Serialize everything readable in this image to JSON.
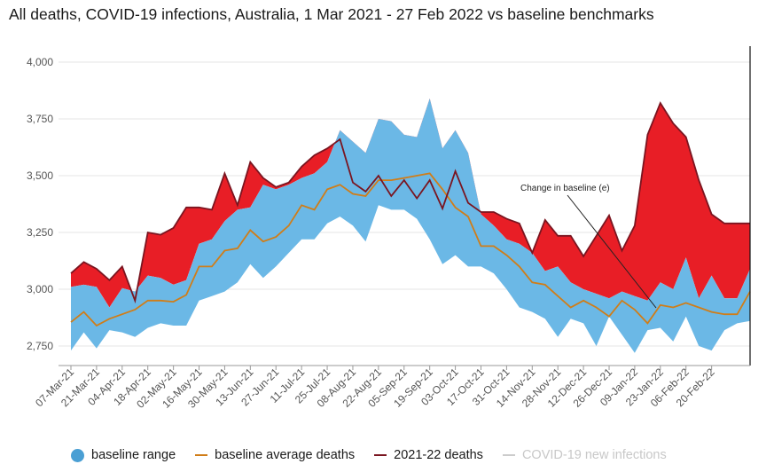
{
  "chart_data": {
    "type": "line",
    "title": "All deaths, COVID-19 infections, Australia, 1 Mar 2021 - 27 Feb 2022 vs baseline benchmarks",
    "xlabel": "",
    "ylabel": "",
    "ylim": [
      2625,
      4100
    ],
    "yticks": [
      2750,
      3000,
      3250,
      3500,
      3750,
      4000
    ],
    "ytick_labels": [
      "2,750",
      "3,000",
      "3,250",
      "3,500",
      "3,750",
      "4,000"
    ],
    "x_tick_labels": [
      "07-Mar-21",
      "21-Mar-21",
      "04-Apr-21",
      "18-Apr-21",
      "02-May-21",
      "16-May-21",
      "30-May-21",
      "13-Jun-21",
      "27-Jun-21",
      "11-Jul-21",
      "25-Jul-21",
      "08-Aug-21",
      "22-Aug-21",
      "05-Sep-21",
      "19-Sep-21",
      "03-Oct-21",
      "17-Oct-21",
      "31-Oct-21",
      "14-Nov-21",
      "28-Nov-21",
      "12-Dec-21",
      "26-Dec-21",
      "09-Jan-22",
      "23-Jan-22",
      "06-Feb-22",
      "20-Feb-22"
    ],
    "grid": true,
    "legend_position": "bottom",
    "series": [
      {
        "name": "baseline range upper",
        "values": [
          3010,
          3020,
          3010,
          2920,
          3005,
          2990,
          3060,
          3050,
          3020,
          3040,
          3200,
          3220,
          3300,
          3350,
          3360,
          3460,
          3440,
          3460,
          3490,
          3510,
          3560,
          3700,
          3650,
          3600,
          3750,
          3740,
          3680,
          3670,
          3840,
          3620,
          3700,
          3600,
          3330,
          3280,
          3220,
          3200,
          3160,
          3080,
          3100,
          3030,
          3000,
          2980,
          2960,
          2990,
          2970,
          2950,
          3030,
          3000,
          3140,
          2960,
          3060,
          2960,
          2960,
          3090
        ]
      },
      {
        "name": "baseline range lower",
        "values": [
          2730,
          2810,
          2740,
          2820,
          2810,
          2790,
          2830,
          2850,
          2840,
          2840,
          2950,
          2970,
          2990,
          3030,
          3110,
          3050,
          3100,
          3160,
          3220,
          3220,
          3290,
          3320,
          3280,
          3210,
          3370,
          3350,
          3350,
          3310,
          3220,
          3110,
          3150,
          3100,
          3100,
          3070,
          3000,
          2920,
          2900,
          2870,
          2790,
          2870,
          2850,
          2750,
          2880,
          2800,
          2720,
          2820,
          2830,
          2770,
          2880,
          2750,
          2730,
          2820,
          2850,
          2860
        ]
      },
      {
        "name": "baseline average deaths",
        "color": "#d07d18",
        "values": [
          2855,
          2900,
          2840,
          2870,
          2890,
          2910,
          2950,
          2950,
          2945,
          2975,
          3100,
          3100,
          3170,
          3180,
          3260,
          3210,
          3230,
          3280,
          3370,
          3350,
          3440,
          3460,
          3420,
          3410,
          3480,
          3480,
          3490,
          3500,
          3510,
          3440,
          3360,
          3320,
          3190,
          3190,
          3150,
          3100,
          3030,
          3020,
          2970,
          2920,
          2950,
          2920,
          2880,
          2950,
          2910,
          2850,
          2930,
          2920,
          2940,
          2920,
          2900,
          2890,
          2890,
          2990
        ]
      },
      {
        "name": "2021-22 deaths",
        "color": "#7a1520",
        "values": [
          3070,
          3120,
          3090,
          3040,
          3100,
          2950,
          3250,
          3240,
          3270,
          3360,
          3360,
          3350,
          3510,
          3370,
          3560,
          3490,
          3450,
          3470,
          3540,
          3590,
          3620,
          3660,
          3470,
          3430,
          3500,
          3410,
          3480,
          3400,
          3480,
          3355,
          3520,
          3380,
          3340,
          3340,
          3310,
          3290,
          3160,
          3305,
          3235,
          3235,
          3145,
          3235,
          3325,
          3170,
          3280,
          3680,
          3820,
          3730,
          3670,
          3480,
          3330,
          3290,
          3290,
          3290
        ]
      },
      {
        "name": "COVID-19 new infections",
        "color": "#cccccc",
        "values": []
      }
    ],
    "annotations": [
      {
        "text": "Change in baseline (e)"
      }
    ]
  },
  "legend": {
    "items": [
      {
        "label": "baseline range",
        "color": "#4a9fd4"
      },
      {
        "label": "baseline average deaths",
        "color": "#d07d18"
      },
      {
        "label": "2021-22 deaths",
        "color": "#7a1520"
      },
      {
        "label": "COVID-19 new infections",
        "color": "#cccccc"
      }
    ]
  },
  "colors": {
    "band_fill": "#6bb8e6",
    "excess_fill": "#e81e26",
    "grid": "#e6e6e6",
    "axis": "#999999"
  }
}
